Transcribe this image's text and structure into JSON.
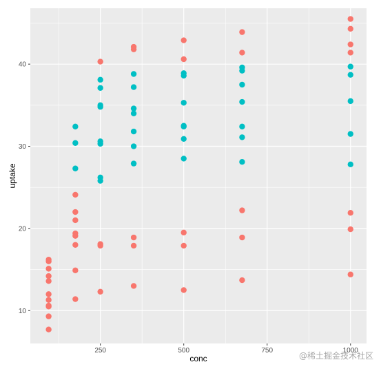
{
  "chart_data": {
    "type": "scatter",
    "xlabel": "conc",
    "ylabel": "uptake",
    "xlim": [
      40,
      1048
    ],
    "ylim": [
      6,
      46.8
    ],
    "x_ticks": [
      250,
      500,
      750,
      1000
    ],
    "x_tick_labels": [
      "250",
      "500",
      "750",
      "1000"
    ],
    "x_minor_ticks": [
      125,
      375,
      625,
      875
    ],
    "y_ticks": [
      10,
      20,
      30,
      40
    ],
    "y_tick_labels": [
      "10",
      "20",
      "30",
      "40"
    ],
    "y_minor_ticks": [
      15,
      25,
      35,
      45
    ],
    "grid": true,
    "legend": "none",
    "panel_background": "#ebebeb",
    "grid_color": "#ffffff",
    "series": [
      {
        "color": "#f8766d",
        "points": [
          [
            95,
            16.2
          ],
          [
            95,
            16.0
          ],
          [
            95,
            15.1
          ],
          [
            95,
            14.2
          ],
          [
            95,
            13.6
          ],
          [
            95,
            12.0
          ],
          [
            95,
            11.3
          ],
          [
            95,
            10.6
          ],
          [
            95,
            10.5
          ],
          [
            95,
            9.3
          ],
          [
            95,
            7.7
          ],
          [
            175,
            24.1
          ],
          [
            175,
            22.0
          ],
          [
            175,
            21.0
          ],
          [
            175,
            19.4
          ],
          [
            175,
            19.1
          ],
          [
            175,
            18.0
          ],
          [
            175,
            14.9
          ],
          [
            175,
            11.4
          ],
          [
            250,
            40.3
          ],
          [
            250,
            18.1
          ],
          [
            250,
            17.9
          ],
          [
            250,
            12.3
          ],
          [
            350,
            42.1
          ],
          [
            350,
            41.8
          ],
          [
            350,
            18.9
          ],
          [
            350,
            17.9
          ],
          [
            350,
            13.0
          ],
          [
            500,
            42.9
          ],
          [
            500,
            40.6
          ],
          [
            500,
            19.5
          ],
          [
            500,
            17.9
          ],
          [
            500,
            12.5
          ],
          [
            675,
            43.9
          ],
          [
            675,
            41.4
          ],
          [
            675,
            22.2
          ],
          [
            675,
            18.9
          ],
          [
            675,
            13.7
          ],
          [
            1000,
            45.5
          ],
          [
            1000,
            44.3
          ],
          [
            1000,
            42.4
          ],
          [
            1000,
            41.4
          ],
          [
            1000,
            21.9
          ],
          [
            1000,
            19.9
          ],
          [
            1000,
            14.4
          ]
        ]
      },
      {
        "color": "#00bfc4",
        "points": [
          [
            175,
            32.4
          ],
          [
            175,
            30.4
          ],
          [
            175,
            27.3
          ],
          [
            250,
            38.1
          ],
          [
            250,
            37.1
          ],
          [
            250,
            35.0
          ],
          [
            250,
            34.8
          ],
          [
            250,
            30.6
          ],
          [
            250,
            30.3
          ],
          [
            250,
            26.2
          ],
          [
            250,
            25.8
          ],
          [
            350,
            38.8
          ],
          [
            350,
            37.2
          ],
          [
            350,
            34.6
          ],
          [
            350,
            34.0
          ],
          [
            350,
            31.8
          ],
          [
            350,
            30.0
          ],
          [
            350,
            27.9
          ],
          [
            500,
            38.9
          ],
          [
            500,
            38.6
          ],
          [
            500,
            35.3
          ],
          [
            500,
            32.5
          ],
          [
            500,
            32.4
          ],
          [
            500,
            30.9
          ],
          [
            500,
            28.5
          ],
          [
            675,
            39.6
          ],
          [
            675,
            39.2
          ],
          [
            675,
            37.5
          ],
          [
            675,
            35.4
          ],
          [
            675,
            32.4
          ],
          [
            675,
            31.1
          ],
          [
            675,
            28.1
          ],
          [
            1000,
            39.7
          ],
          [
            1000,
            38.7
          ],
          [
            1000,
            35.5
          ],
          [
            1000,
            31.5
          ],
          [
            1000,
            27.8
          ]
        ]
      }
    ]
  },
  "watermark": "@稀土掘金技术社区"
}
